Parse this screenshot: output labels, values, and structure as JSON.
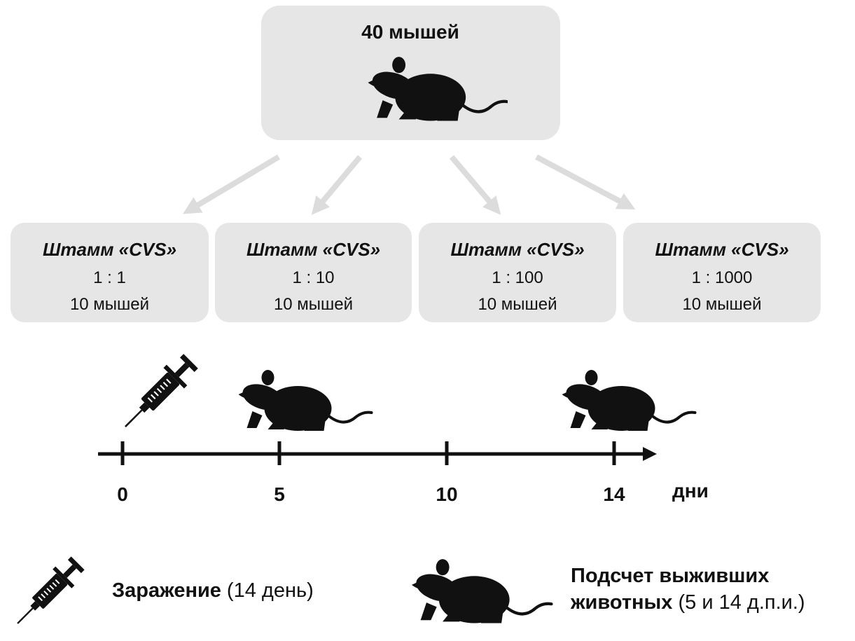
{
  "root": {
    "label": "40 мышей"
  },
  "groups": [
    {
      "strain": "Штамм «CVS»",
      "dilution": "1 : 1",
      "count": "10 мышей"
    },
    {
      "strain": "Штамм «CVS»",
      "dilution": "1 : 10",
      "count": "10 мышей"
    },
    {
      "strain": "Штамм «CVS»",
      "dilution": "1 : 100",
      "count": "10 мышей"
    },
    {
      "strain": "Штамм «CVS»",
      "dilution": "1 : 1000",
      "count": "10 мышей"
    }
  ],
  "timeline": {
    "ticks": [
      "0",
      "5",
      "10",
      "14"
    ],
    "unit": "дни"
  },
  "legend": [
    {
      "label": "Заражение",
      "note": "(14 день)"
    },
    {
      "label": "Подсчет выживших животных",
      "note": "(5 и 14 д.п.и.)"
    }
  ]
}
